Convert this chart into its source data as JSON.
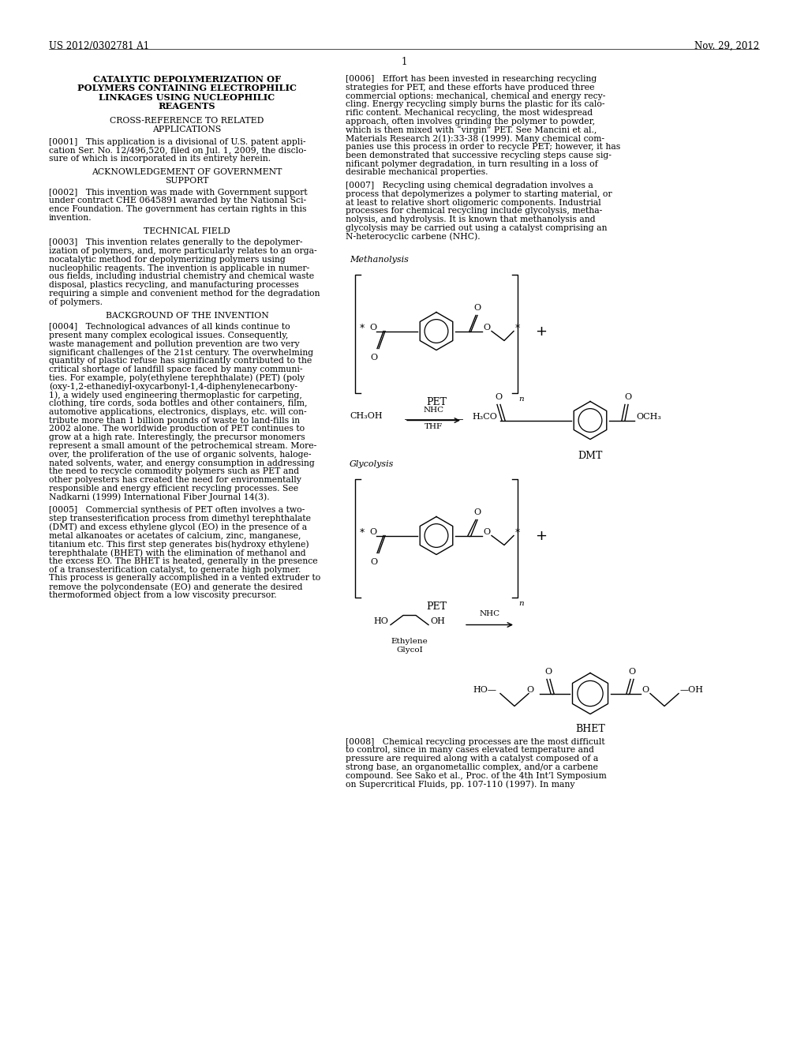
{
  "page_bg": "#ffffff",
  "header_left": "US 2012/0302781 A1",
  "header_right": "Nov. 29, 2012",
  "page_number": "1",
  "title_bold": "CATALYTIC DEPOLYMERIZATION OF\nPOLYMERS CONTAINING ELECTROPHILIC\nLINKAGES USING NUCLEOPHILIC\nREAGENTS",
  "section_cross_ref": "CROSS-REFERENCE TO RELATED\nAPPLICATIONS",
  "para_0001": "[0001]   This application is a divisional of U.S. patent appli-\ncation Ser. No. 12/496,520, filed on Jul. 1, 2009, the disclo-\nsure of which is incorporated in its entirety herein.",
  "section_ack": "ACKNOWLEDGEMENT OF GOVERNMENT\nSUPPORT",
  "para_0002": "[0002]   This invention was made with Government support\nunder contract CHE 0645891 awarded by the National Sci-\nence Foundation. The government has certain rights in this\ninvention.",
  "section_tech": "TECHNICAL FIELD",
  "para_0003": "[0003]   This invention relates generally to the depolymer-\nization of polymers, and, more particularly relates to an orga-\nnocatalytic method for depolymerizing polymers using\nnucleophilic reagents. The invention is applicable in numer-\nous fields, including industrial chemistry and chemical waste\ndisposal, plastics recycling, and manufacturing processes\nrequiring a simple and convenient method for the degradation\nof polymers.",
  "section_bg": "BACKGROUND OF THE INVENTION",
  "para_0004": "[0004]   Technological advances of all kinds continue to\npresent many complex ecological issues. Consequently,\nwaste management and pollution prevention are two very\nsignificant challenges of the 21st century. The overwhelming\nquantity of plastic refuse has significantly contributed to the\ncritical shortage of landfill space faced by many communi-\nties. For example, poly(ethylene terephthalate) (PET) (poly\n(oxy-1,2-ethanediyl-oxycarbonyl-1,4-diphenylenecarbony-\n1), a widely used engineering thermoplastic for carpeting,\nclothing, tire cords, soda bottles and other containers, film,\nautomotive applications, electronics, displays, etc. will con-\ntribute more than 1 billion pounds of waste to land-fills in\n2002 alone. The worldwide production of PET continues to\ngrow at a high rate. Interestingly, the precursor monomers\nrepresent a small amount of the petrochemical stream. More-\nover, the proliferation of the use of organic solvents, haloge-\nnated solvents, water, and energy consumption in addressing\nthe need to recycle commodity polymers such as PET and\nother polyesters has created the need for environmentally\nresponsible and energy efficient recycling processes. See\nNadkarni (1999) International Fiber Journal 14(3).",
  "para_0005": "[0005]   Commercial synthesis of PET often involves a two-\nstep transesterification process from dimethyl terephthalate\n(DMT) and excess ethylene glycol (EO) in the presence of a\nmetal alkanoates or acetates of calcium, zinc, manganese,\ntitanium etc. This first step generates bis(hydroxy ethylene)\nterephthalate (BHET) with the elimination of methanol and\nthe excess EO. The BHET is heated, generally in the presence\nof a transesterification catalyst, to generate high polymer.\nThis process is generally accomplished in a vented extruder to\nremove the polycondensate (EO) and generate the desired\nthermoformed object from a low viscosity precursor.",
  "para_0006": "[0006]   Effort has been invested in researching recycling\nstrategies for PET, and these efforts have produced three\ncommercial options: mechanical, chemical and energy recy-\ncling. Energy recycling simply burns the plastic for its calo-\nrific content. Mechanical recycling, the most widespread\napproach, often involves grinding the polymer to powder,\nwhich is then mixed with “virgin” PET. See Mancini et al.,\nMaterials Research 2(1):33-38 (1999). Many chemical com-\npanies use this process in order to recycle PET; however, it has\nbeen demonstrated that successive recycling steps cause sig-\nnificant polymer degradation, in turn resulting in a loss of\ndesirable mechanical properties.",
  "para_0007": "[0007]   Recycling using chemical degradation involves a\nprocess that depolymerizes a polymer to starting material, or\nat least to relative short oligomeric components. Industrial\nprocesses for chemical recycling include glycolysis, metha-\nnolysis, and hydrolysis. It is known that methanolysis and\nglycolysis may be carried out using a catalyst comprising an\nN-heterocyclic carbene (NHC).",
  "para_0008": "[0008]   Chemical recycling processes are the most difficult\nto control, since in many cases elevated temperature and\npressure are required along with a catalyst composed of a\nstrong base, an organometallic complex, and/or a carbene\ncompound. See Sako et al., Proc. of the 4th Int’l Symposium\non Supercritical Fluids, pp. 107-110 (1997). In many",
  "lw": 1.0
}
